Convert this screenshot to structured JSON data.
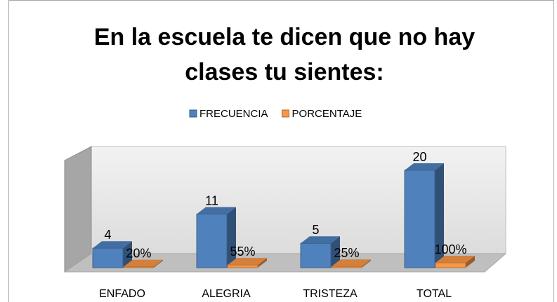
{
  "chart_data": {
    "type": "bar3d",
    "title_lines": [
      "En la escuela te dicen que no hay",
      "clases tu sientes:"
    ],
    "categories": [
      "ENFADO",
      "ALEGRIA",
      "TRISTEZA",
      "TOTAL"
    ],
    "series": [
      {
        "name": "FRECUENCIA",
        "color": "#4f81bd",
        "values": [
          4,
          11,
          5,
          20
        ]
      },
      {
        "name": "PORCENTAJE",
        "color": "#f79646",
        "values": [
          0.2,
          0.55,
          0.25,
          1
        ],
        "value_labels": [
          "20%",
          "55%",
          "25%",
          "100%"
        ]
      }
    ],
    "ylim": [
      0,
      22
    ]
  }
}
